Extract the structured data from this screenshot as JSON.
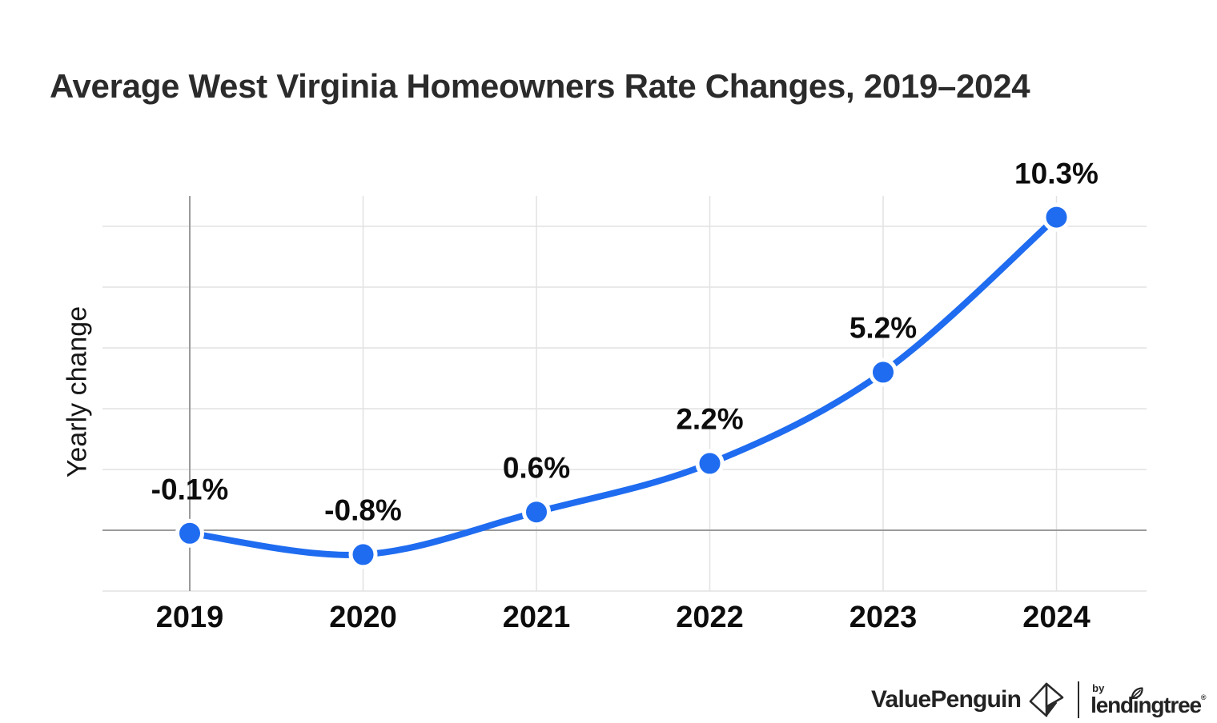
{
  "title": "Average West Virginia Homeowners Rate Changes, 2019–2024",
  "y_axis_label": "Yearly change",
  "footer": {
    "brand": "ValuePenguin",
    "by_label": "by",
    "partner": "lendingtree",
    "registered_mark": "®"
  },
  "colors": {
    "background": "#ffffff",
    "line": "#1f6cf0",
    "point_fill": "#1f6cf0",
    "point_halo": "#ffffff",
    "grid_light": "#e2e2e2",
    "grid_dark": "#9b9b9b",
    "title_text": "#2b2b2b",
    "label_text": "#0d0d0d"
  },
  "chart_data": {
    "type": "line",
    "title": "Average West Virginia Homeowners Rate Changes, 2019–2024",
    "xlabel": "",
    "ylabel": "Yearly change",
    "categories": [
      "2019",
      "2020",
      "2021",
      "2022",
      "2023",
      "2024"
    ],
    "series": [
      {
        "name": "Yearly change",
        "values": [
          -0.1,
          -0.8,
          0.6,
          2.2,
          5.2,
          10.3
        ],
        "point_labels": [
          "-0.1%",
          "-0.8%",
          "0.6%",
          "2.2%",
          "5.2%",
          "10.3%"
        ]
      }
    ],
    "ylim": [
      -2,
      12
    ],
    "grid": true,
    "grid_step_pct": 2,
    "light_gridlines_pct": [
      10,
      8,
      6,
      4,
      2,
      -2
    ],
    "zero_line_pct": 0,
    "y_tick_labels_shown": false,
    "legend": false,
    "line_style": "smooth",
    "markers": "filled-circle-with-white-halo"
  }
}
